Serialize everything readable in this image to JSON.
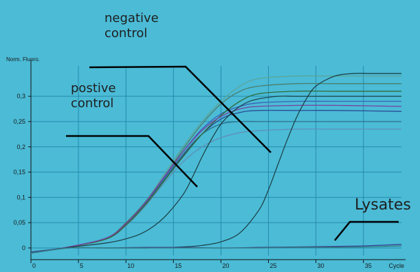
{
  "colors": {
    "background": "#4bbbd6",
    "grid": "#1f7fa3",
    "axis": "#111111",
    "pointer": "#000000",
    "control_curve": "#1a3b3f",
    "sample_curves": [
      "#4b7d6b",
      "#2f6c3a",
      "#3c5fb5",
      "#2b4a96",
      "#5f8fb8",
      "#7b3fa1",
      "#5aa69a",
      "#2c6f8a"
    ]
  },
  "annotations": {
    "negative_control": "negative\ncontrol",
    "positive_control": "postive\ncontrol",
    "lysates": "Lysates"
  },
  "chart_data": {
    "type": "line",
    "title": "",
    "xlabel": "Cycle",
    "ylabel": "Norm. Fluoro.",
    "xlim": [
      0,
      39
    ],
    "ylim": [
      -0.015,
      0.36
    ],
    "x_ticks": [
      0,
      5,
      10,
      15,
      20,
      25,
      30,
      35
    ],
    "x_tick_labels": [
      "0",
      "5",
      "10",
      "15",
      "20",
      "25",
      "30",
      "35"
    ],
    "y_ticks": [
      0,
      0.05,
      0.1,
      0.15,
      0.2,
      0.25,
      0.3
    ],
    "y_tick_labels": [
      "0",
      "0,05",
      "0,1",
      "0,15",
      "0,2",
      "0,25",
      "0,3"
    ],
    "grid": true,
    "series": [
      {
        "group": "sample",
        "color": "#5aa69a",
        "x": [
          0,
          4,
          8,
          10,
          12,
          14,
          16,
          18,
          20,
          22,
          24,
          28,
          32,
          39
        ],
        "y": [
          -0.01,
          0.002,
          0.02,
          0.05,
          0.09,
          0.145,
          0.2,
          0.25,
          0.29,
          0.32,
          0.335,
          0.34,
          0.34,
          0.34
        ]
      },
      {
        "group": "sample",
        "color": "#4b7d6b",
        "x": [
          0,
          4,
          8,
          10,
          12,
          14,
          16,
          18,
          20,
          22,
          24,
          28,
          32,
          39
        ],
        "y": [
          -0.01,
          0.002,
          0.02,
          0.05,
          0.09,
          0.14,
          0.195,
          0.245,
          0.285,
          0.31,
          0.32,
          0.325,
          0.325,
          0.325
        ]
      },
      {
        "group": "sample",
        "color": "#3c5fb5",
        "x": [
          0,
          4,
          8,
          10,
          12,
          14,
          16,
          18,
          20,
          22,
          24,
          28,
          32,
          39
        ],
        "y": [
          -0.01,
          0.002,
          0.02,
          0.048,
          0.088,
          0.138,
          0.19,
          0.235,
          0.265,
          0.28,
          0.287,
          0.29,
          0.29,
          0.29
        ]
      },
      {
        "group": "sample",
        "color": "#2b4a96",
        "x": [
          0,
          4,
          8,
          10,
          12,
          14,
          16,
          18,
          20,
          22,
          24,
          28,
          32,
          39
        ],
        "y": [
          -0.01,
          0.002,
          0.019,
          0.046,
          0.085,
          0.133,
          0.182,
          0.225,
          0.255,
          0.268,
          0.272,
          0.272,
          0.272,
          0.27
        ]
      },
      {
        "group": "sample",
        "color": "#5f8fb8",
        "x": [
          0,
          4,
          8,
          10,
          12,
          14,
          16,
          18,
          20,
          22,
          24,
          28,
          32,
          39
        ],
        "y": [
          -0.01,
          0.002,
          0.018,
          0.044,
          0.082,
          0.128,
          0.17,
          0.2,
          0.218,
          0.228,
          0.232,
          0.235,
          0.235,
          0.235
        ]
      },
      {
        "group": "sample",
        "color": "#2c6f8a",
        "x": [
          0,
          4,
          8,
          10,
          12,
          14,
          16,
          18,
          20,
          22,
          24,
          28,
          32,
          39
        ],
        "y": [
          -0.01,
          0.002,
          0.02,
          0.047,
          0.087,
          0.135,
          0.185,
          0.225,
          0.245,
          0.25,
          0.25,
          0.25,
          0.25,
          0.25
        ]
      },
      {
        "group": "sample",
        "color": "#2f6c3a",
        "x": [
          0,
          4,
          8,
          10,
          12,
          14,
          16,
          18,
          20,
          22,
          24,
          28,
          32,
          39
        ],
        "y": [
          -0.01,
          0.002,
          0.018,
          0.045,
          0.084,
          0.132,
          0.18,
          0.225,
          0.262,
          0.29,
          0.305,
          0.31,
          0.31,
          0.31
        ]
      },
      {
        "group": "sample",
        "color": "#7b3fa1",
        "x": [
          0,
          4,
          8,
          10,
          12,
          14,
          16,
          18,
          20,
          22,
          24,
          28,
          32,
          39
        ],
        "y": [
          -0.01,
          0.002,
          0.02,
          0.048,
          0.089,
          0.14,
          0.19,
          0.232,
          0.26,
          0.275,
          0.28,
          0.282,
          0.282,
          0.28
        ]
      },
      {
        "group": "control",
        "color": "#1a3b3f",
        "x": [
          0,
          4,
          8,
          10,
          12,
          14,
          16,
          17,
          18,
          19,
          20,
          21,
          22,
          23,
          24,
          26,
          28,
          32,
          39
        ],
        "y": [
          -0.01,
          0.001,
          0.01,
          0.018,
          0.032,
          0.06,
          0.105,
          0.14,
          0.18,
          0.215,
          0.245,
          0.265,
          0.28,
          0.29,
          0.295,
          0.3,
          0.3,
          0.3,
          0.3
        ]
      },
      {
        "group": "control",
        "color": "#1a3b3f",
        "x": [
          0,
          4,
          8,
          12,
          16,
          18,
          20,
          22,
          24,
          25,
          26,
          27,
          28,
          29,
          30,
          32,
          34,
          36,
          39
        ],
        "y": [
          -0.01,
          0.0,
          0.0,
          0.0,
          0.002,
          0.005,
          0.012,
          0.03,
          0.075,
          0.115,
          0.165,
          0.215,
          0.26,
          0.295,
          0.32,
          0.34,
          0.345,
          0.345,
          0.345
        ]
      },
      {
        "group": "lysate",
        "color": "#3c3f8f",
        "x": [
          0,
          4,
          8,
          12,
          16,
          20,
          24,
          28,
          32,
          35,
          39
        ],
        "y": [
          -0.008,
          0.0,
          0.0,
          0.001,
          0.001,
          0.0,
          0.001,
          0.002,
          0.003,
          0.004,
          0.007
        ]
      },
      {
        "group": "lysate",
        "color": "#2f7f7f",
        "x": [
          0,
          4,
          8,
          12,
          16,
          20,
          24,
          28,
          32,
          35,
          39
        ],
        "y": [
          -0.01,
          0.0,
          0.0,
          0.0,
          0.0,
          0.0,
          0.0,
          0.001,
          0.001,
          0.002,
          0.004
        ]
      }
    ]
  }
}
